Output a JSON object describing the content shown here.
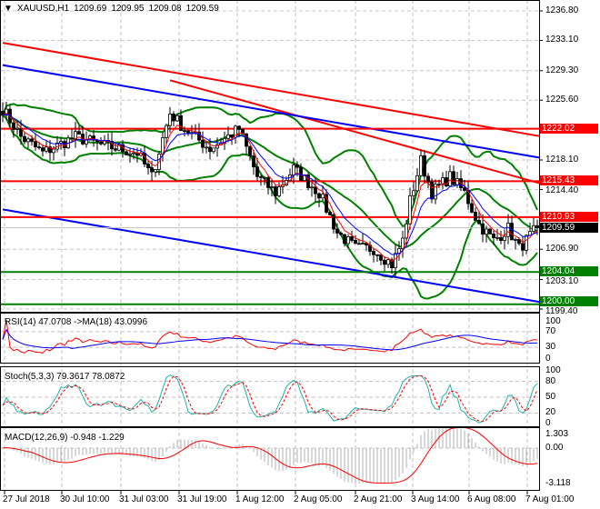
{
  "header": {
    "symbol": "XAUUSD,H1",
    "open": "1209.69",
    "high": "1209.95",
    "low": "1209.08",
    "close": "1209.59"
  },
  "chart_data": {
    "type": "candlestick",
    "symbol": "XAUUSD",
    "timeframe": "H1",
    "ylim": [
      1199.4,
      1236.8
    ],
    "y_ticks": [
      "1236.80",
      "1233.10",
      "1229.30",
      "1225.60",
      "1218.10",
      "1214.40",
      "1206.90",
      "1203.10",
      "1199.40"
    ],
    "x_ticks": [
      "27 Jul 2018",
      "30 Jul 10:00",
      "31 Jul 03:00",
      "31 Jul 19:00",
      "1 Aug 12:00",
      "2 Aug 05:00",
      "2 Aug 21:00",
      "3 Aug 14:00",
      "6 Aug 08:00",
      "7 Aug 01:00"
    ],
    "close_path": [
      [
        0,
        1224.5
      ],
      [
        5,
        1221
      ],
      [
        11,
        1219
      ],
      [
        20,
        1221
      ],
      [
        27,
        1220
      ],
      [
        37,
        1219
      ],
      [
        41,
        1216
      ],
      [
        46,
        1224
      ],
      [
        50,
        1222
      ],
      [
        57,
        1219.5
      ],
      [
        65,
        1222
      ],
      [
        70,
        1216
      ],
      [
        75,
        1214
      ],
      [
        80,
        1217
      ],
      [
        87,
        1214
      ],
      [
        92,
        1209
      ],
      [
        97,
        1207
      ],
      [
        102,
        1207
      ],
      [
        107,
        1205
      ],
      [
        110,
        1208
      ],
      [
        112,
        1213
      ],
      [
        115,
        1218
      ],
      [
        118,
        1214
      ],
      [
        123,
        1216
      ],
      [
        127,
        1214
      ],
      [
        131,
        1210
      ],
      [
        135,
        1208
      ],
      [
        139,
        1209.5
      ],
      [
        142,
        1207
      ],
      [
        147,
        1209.59
      ]
    ],
    "levels": [
      {
        "value": "1222.02",
        "color": "#ff0000"
      },
      {
        "value": "1215.43",
        "color": "#ff0000"
      },
      {
        "value": "1210.93",
        "color": "#ff0000"
      },
      {
        "value": "1204.04",
        "color": "#008000"
      },
      {
        "value": "1200.00",
        "color": "#008000"
      }
    ],
    "current_price": {
      "value": "1209.59",
      "color": "#000000"
    },
    "trendlines": [
      {
        "color": "#ff0000",
        "from": [
          0,
          1232.8
        ],
        "to": [
          147,
          1221.1
        ]
      },
      {
        "color": "#ff0000",
        "from": [
          46,
          1228.1
        ],
        "to": [
          147,
          1215.2
        ]
      },
      {
        "color": "#0000ff",
        "from": [
          0,
          1230.0
        ],
        "to": [
          147,
          1218.4
        ]
      },
      {
        "color": "#0000ff",
        "from": [
          0,
          1211.9
        ],
        "to": [
          147,
          1200.3
        ]
      }
    ],
    "indicators": {
      "rsi": {
        "label": "RSI(14) 47.0708  ->MA(18) 43.0996",
        "ticks": [
          "100",
          "70",
          "30",
          "0"
        ]
      },
      "stoch": {
        "label": "Stoch(5,3,3) 79.3617 78.0872",
        "ticks": [
          "100",
          "80",
          "50",
          "20",
          "0"
        ]
      },
      "macd": {
        "label": "MACD(12,26,9) -0.948 -1.229",
        "ticks": [
          "1.303",
          "0.00",
          "-3.118"
        ]
      }
    }
  }
}
